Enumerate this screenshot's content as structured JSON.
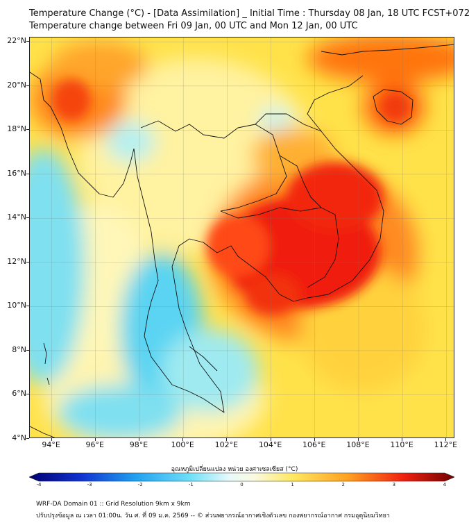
{
  "header": {
    "title_line1": "Temperature Change (°C) - [Data Assimilation] _ Initial Time : Thursday 08 Jan, 18 UTC FCST+072",
    "title_line2": "Temperature change between Fri 09 Jan, 00 UTC and Mon 12 Jan, 00 UTC"
  },
  "map": {
    "latitude_labels": [
      "22°N",
      "20°N",
      "18°N",
      "16°N",
      "14°N",
      "12°N",
      "10°N",
      "8°N",
      "6°N",
      "4°N"
    ],
    "longitude_labels": [
      "94°E",
      "96°E",
      "98°E",
      "100°E",
      "102°E",
      "104°E",
      "106°E",
      "108°E",
      "110°E",
      "112°E"
    ],
    "lat_values": [
      22,
      20,
      18,
      16,
      14,
      12,
      10,
      8,
      6,
      4
    ],
    "lon_values": [
      94,
      96,
      98,
      100,
      102,
      104,
      106,
      108,
      110,
      112
    ],
    "extent": {
      "lon_min": 93,
      "lon_max": 112.4,
      "lat_min": 4,
      "lat_max": 22.2
    }
  },
  "colorbar": {
    "title": "อุณหภูมิเปลี่ยนแปลง หน่วย องศาเซลเซียส (°C)",
    "tick_labels": [
      "-4",
      "-3",
      "-2",
      "-1",
      "0",
      "1",
      "2",
      "3",
      "4"
    ],
    "min": -4,
    "max": 4
  },
  "footer": {
    "line1": "WRF-DA Domain 01 :: Grid Resolution 9km x 9km",
    "line2": "ปรับปรุงข้อมูล ณ เวลา 01:00น. วัน ศ. ที่ 09 ม.ค. 2569 -- © ส่วนพยากรณ์อากาศเชิงตัวเลข กองพยากรณ์อากาศ กรมอุตุนิยมวิทยา"
  },
  "colors": {
    "strong_warm": "#e60000",
    "warm": "#ff7a10",
    "mild_warm": "#ffe34d",
    "neutral": "#f7f5b0",
    "cool": "#5cd8f0",
    "strong_cool": "#1aa4e0",
    "border": "#111111"
  }
}
